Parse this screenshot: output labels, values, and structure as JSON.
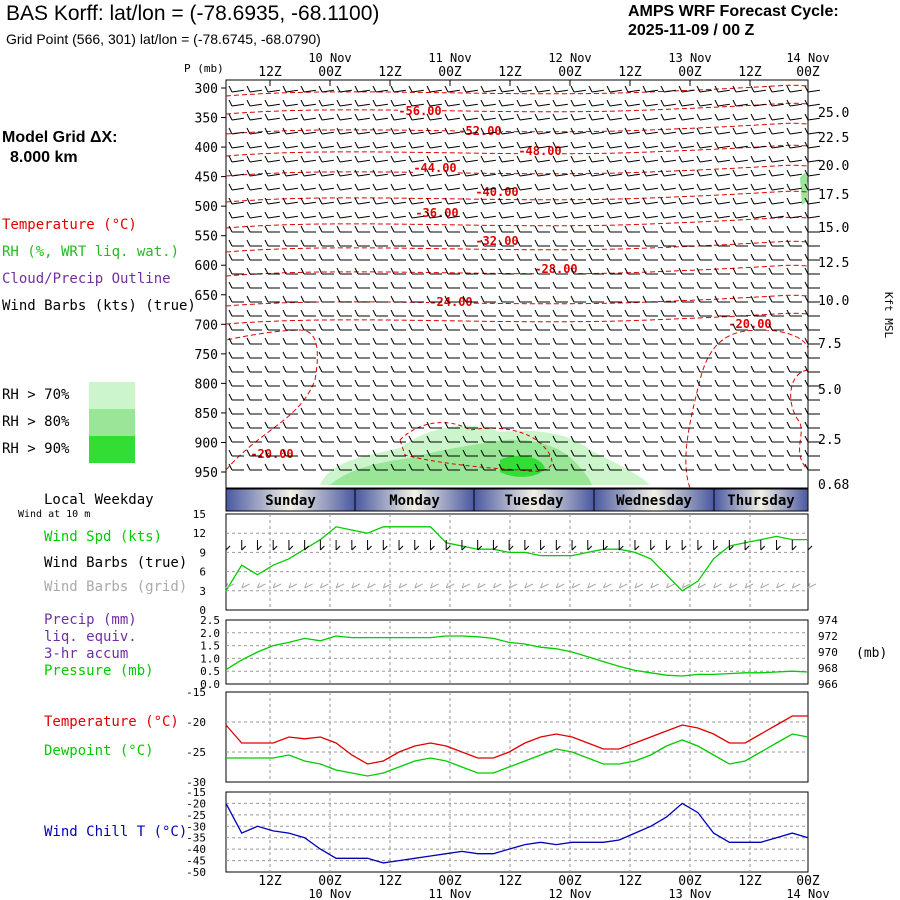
{
  "header": {
    "title": "BAS Korff:  lat/lon = (-78.6935, -68.1100)",
    "grid_point": "Grid Point (566, 301) lat/lon = (-78.6745, -68.0790)",
    "cycle_line1": "AMPS WRF Forecast Cycle:",
    "cycle_line2": "2025-11-09 / 00  Z"
  },
  "legend": {
    "model_grid_label": "Model Grid ΔX:",
    "model_grid_value": "8.000 km",
    "temperature": "Temperature (°C)",
    "rh": "RH (%, WRT liq. wat.)",
    "cloud": "Cloud/Precip Outline",
    "wind_barbs": "Wind Barbs (kts) (true)",
    "rh_bins": [
      {
        "label": "RH > 70%",
        "color": "#ccf5cc"
      },
      {
        "label": "RH > 80%",
        "color": "#99e699"
      },
      {
        "label": "RH > 90%",
        "color": "#33dd33"
      }
    ]
  },
  "time_axis": {
    "top_hour_labels": [
      "12Z",
      "00Z",
      "12Z",
      "00Z",
      "12Z",
      "00Z",
      "12Z",
      "00Z",
      "12Z",
      "00Z"
    ],
    "date_labels": [
      "10 Nov",
      "11 Nov",
      "12 Nov",
      "13 Nov",
      "14 Nov"
    ]
  },
  "weekday": {
    "title": "Local Weekday",
    "days": [
      "Sunday",
      "Monday",
      "Tuesday",
      "Wednesday",
      "Thursday"
    ]
  },
  "colors": {
    "temperature": "#e00000",
    "rh_green": "#22bb22",
    "wind_speed": "#00cc00",
    "dewpoint": "#00cc00",
    "wind_chill": "#0000bb",
    "cloud": "#7030a0",
    "grid_barbs": "#aaaaaa"
  },
  "chart_data": [
    {
      "type": "heatmap",
      "name": "cross-section",
      "ylabel": "P (mb)",
      "y2label": "Kft MSL",
      "pressure_levels": [
        300,
        350,
        400,
        450,
        500,
        550,
        600,
        650,
        700,
        750,
        800,
        850,
        900,
        950
      ],
      "height_labels": [
        "25.0",
        "22.5",
        "20.0",
        "17.5",
        "15.0",
        "12.5",
        "10.0",
        "7.5",
        "5.0",
        "2.5",
        "0.68"
      ],
      "temperature_contours": [
        -56,
        -52,
        -48,
        -44,
        -40,
        -36,
        -32,
        -28,
        -24,
        -20,
        -20,
        -20
      ],
      "temperature_labels": [
        "-56.00",
        "-52.00",
        "-48.00",
        "-44.00",
        "-40.00",
        "-36.00",
        "-32.00",
        "-28.00",
        "-24.00",
        "-20.00",
        "-20.00"
      ]
    },
    {
      "type": "line",
      "name": "wind-speed",
      "title": "Wind at 10 m",
      "series_label": "Wind Spd (kts)",
      "barbs_true": "Wind Barbs (true)",
      "barbs_grid": "Wind Barbs (grid)",
      "yticks": [
        "15",
        "12",
        "9",
        "6",
        "3",
        "0"
      ],
      "ylim": [
        0,
        15
      ],
      "values": [
        3,
        7,
        5.5,
        7,
        8,
        9.5,
        11,
        13,
        12.5,
        12,
        13,
        13,
        13,
        13,
        10.5,
        10,
        9.5,
        9.5,
        9,
        9,
        8.5,
        8.5,
        8.5,
        9,
        9.5,
        9.5,
        9,
        8,
        5.5,
        3,
        4.5,
        8,
        10,
        10.5,
        11,
        11.5,
        11,
        11
      ]
    },
    {
      "type": "line",
      "name": "precip-pressure",
      "precip_label": "Precip (mm)",
      "precip_label2": "liq. equiv.",
      "precip_label3": "3-hr accum",
      "pressure_label": "Pressure (mb)",
      "yticks_left": [
        "2.5",
        "2.0",
        "1.5",
        "1.0",
        "0.5",
        "0.0"
      ],
      "yticks_right": [
        "974",
        "972",
        "970",
        "968",
        "966"
      ],
      "y2unit": "(mb)",
      "ylim_pressure": [
        966,
        974
      ],
      "pressure": [
        967.8,
        969,
        970,
        970.8,
        971.2,
        971.7,
        971.4,
        972,
        971.8,
        971.8,
        971.8,
        971.8,
        971.8,
        971.8,
        972,
        972,
        971.9,
        971.7,
        971.2,
        971,
        970.6,
        970.4,
        970,
        969.4,
        968.8,
        968.2,
        967.7,
        967.4,
        967.1,
        967,
        967.2,
        967.2,
        967.3,
        967.4,
        967.4,
        967.5,
        967.6,
        967.5
      ]
    },
    {
      "type": "line",
      "name": "temperature-dewpoint",
      "temperature_label": "Temperature (°C)",
      "dewpoint_label": "Dewpoint (°C)",
      "yticks": [
        "-15",
        "-20",
        "-25",
        "-30"
      ],
      "ylim": [
        -30,
        -15
      ],
      "series": [
        {
          "name": "Temperature (°C)",
          "values": [
            -20.5,
            -23.5,
            -23.5,
            -23.5,
            -22.5,
            -22.8,
            -22.5,
            -23.5,
            -25.5,
            -27,
            -26.5,
            -25,
            -24,
            -23.5,
            -24,
            -25,
            -26,
            -26,
            -25,
            -23.5,
            -22.5,
            -22,
            -22.5,
            -23.5,
            -24.5,
            -24.5,
            -23.5,
            -22.5,
            -21.5,
            -20.5,
            -21,
            -22,
            -23.5,
            -23.5,
            -22,
            -20.5,
            -19,
            -19
          ]
        },
        {
          "name": "Dewpoint (°C)",
          "values": [
            -26,
            -26,
            -26,
            -26,
            -25.5,
            -26.5,
            -27,
            -28,
            -28.5,
            -29,
            -28.5,
            -27.5,
            -26.5,
            -26,
            -26.5,
            -27.5,
            -28.5,
            -28.5,
            -27.5,
            -26.5,
            -25.5,
            -24.5,
            -25,
            -26,
            -27,
            -27,
            -26.5,
            -25.5,
            -24,
            -23,
            -24,
            -25.5,
            -27,
            -26.5,
            -25,
            -23.5,
            -22,
            -22.5
          ]
        }
      ]
    },
    {
      "type": "line",
      "name": "wind-chill",
      "series_label": "Wind Chill T (°C)",
      "yticks": [
        "-15",
        "-20",
        "-25",
        "-30",
        "-35",
        "-40",
        "-45",
        "-50"
      ],
      "ylim": [
        -50,
        -15
      ],
      "values": [
        -20,
        -33,
        -30,
        -32,
        -33,
        -35,
        -40,
        -44,
        -44,
        -44,
        -46,
        -45,
        -44,
        -43,
        -42,
        -41,
        -42,
        -42,
        -40,
        -38,
        -37,
        -38,
        -37,
        -37,
        -37,
        -36,
        -33,
        -30,
        -26,
        -20,
        -24,
        -33,
        -37,
        -37,
        -37,
        -35,
        -33,
        -35
      ]
    }
  ]
}
